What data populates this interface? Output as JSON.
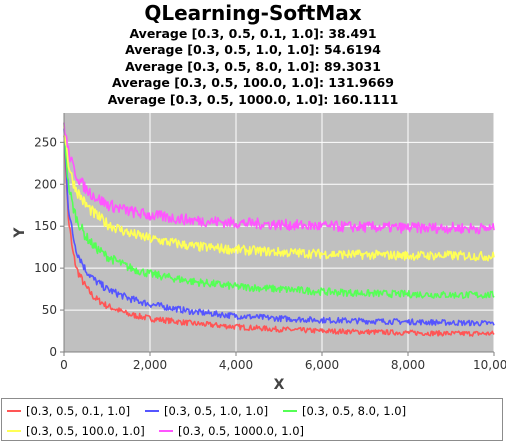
{
  "chart_data": {
    "type": "line",
    "title": "QLearning-SoftMax",
    "subtitles": [
      "Average [0.3, 0.5, 0.1, 1.0]: 38.491",
      "Average [0.3, 0.5, 1.0, 1.0]: 54.6194",
      "Average [0.3, 0.5, 8.0, 1.0]: 89.3031",
      "Average [0.3, 0.5, 100.0, 1.0]: 131.9669",
      "Average [0.3, 0.5, 1000.0, 1.0]: 160.1111"
    ],
    "xlabel": "X",
    "ylabel": "Y",
    "xlim": [
      0,
      10000
    ],
    "ylim": [
      0,
      285
    ],
    "xticks": [
      0,
      2000,
      4000,
      6000,
      8000,
      10000
    ],
    "xtick_labels": [
      "0",
      "2,000",
      "4,000",
      "6,000",
      "8,000",
      "10,000"
    ],
    "yticks": [
      0,
      50,
      100,
      150,
      200,
      250
    ],
    "grid": true,
    "plot_background": "#c0c0c0",
    "legend_position": "bottom",
    "x": [
      0,
      100,
      200,
      300,
      500,
      700,
      1000,
      1500,
      2000,
      3000,
      4000,
      5000,
      6000,
      7000,
      8000,
      9000,
      10000
    ],
    "series": [
      {
        "name": "[0.3, 0.5, 0.1, 1.0]",
        "color": "#ff5555",
        "values": [
          265,
          160,
          120,
          98,
          78,
          65,
          55,
          45,
          40,
          34,
          30,
          27,
          25,
          24,
          23,
          22,
          22
        ]
      },
      {
        "name": "[0.3, 0.5, 1.0, 1.0]",
        "color": "#5555ff",
        "values": [
          265,
          175,
          140,
          120,
          98,
          86,
          75,
          64,
          57,
          48,
          43,
          40,
          38,
          37,
          36,
          35,
          34
        ]
      },
      {
        "name": "[0.3, 0.5, 8.0, 1.0]",
        "color": "#55ff55",
        "values": [
          268,
          200,
          175,
          158,
          138,
          126,
          114,
          101,
          93,
          84,
          78,
          75,
          72,
          70,
          69,
          68,
          68
        ]
      },
      {
        "name": "[0.3, 0.5, 100.0, 1.0]",
        "color": "#ffff55",
        "values": [
          270,
          225,
          205,
          192,
          176,
          165,
          153,
          142,
          135,
          126,
          122,
          119,
          117,
          116,
          115,
          115,
          114
        ]
      },
      {
        "name": "[0.3, 0.5, 1000.0, 1.0]",
        "color": "#ff55ff",
        "values": [
          272,
          240,
          222,
          210,
          195,
          186,
          176,
          168,
          163,
          157,
          154,
          152,
          150,
          149,
          148,
          148,
          147
        ]
      }
    ]
  }
}
